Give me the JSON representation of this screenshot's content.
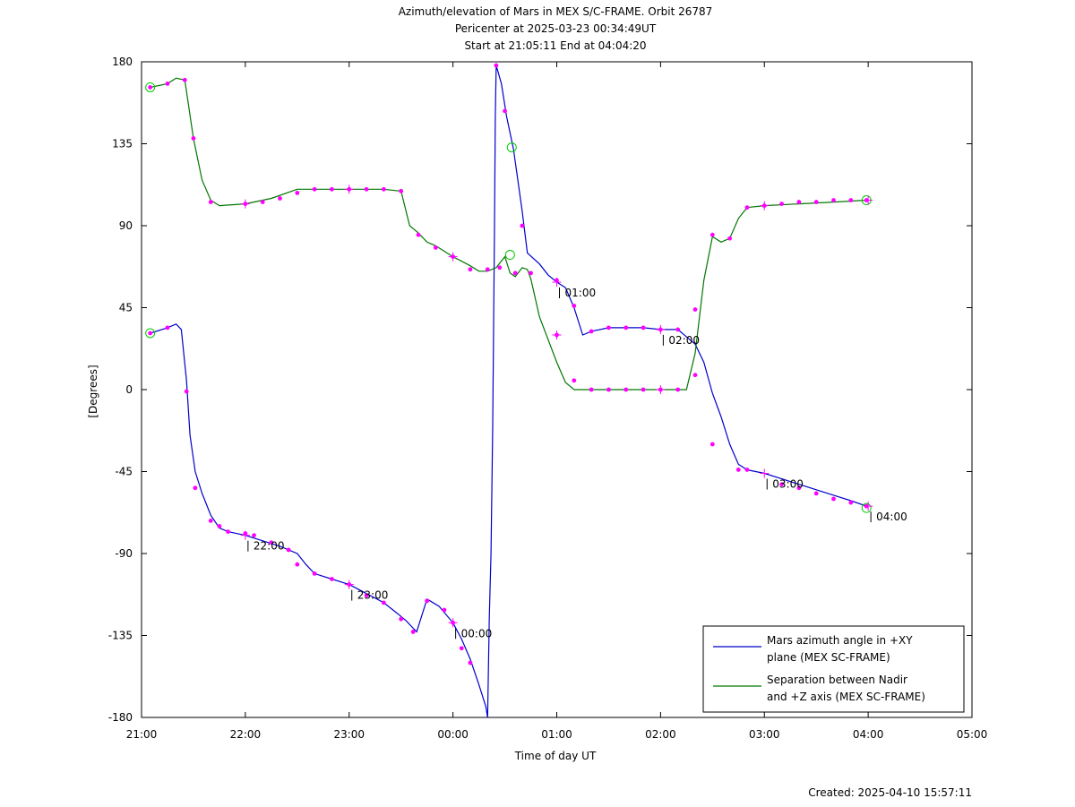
{
  "chart_data": {
    "type": "line",
    "title_lines": [
      "Azimuth/elevation of Mars in MEX S/C-FRAME.  Orbit 26787",
      "Pericenter at 2025-03-23 00:34:49UT",
      "Start at 21:05:11 End at 04:04:20"
    ],
    "xlabel": "Time of day UT",
    "ylabel": "[Degrees]",
    "xlim": [
      0,
      480
    ],
    "ylim": [
      -180,
      180
    ],
    "x_unit": "minutes after 21:00 UT",
    "x_ticks": [
      {
        "v": 0,
        "label": "21:00"
      },
      {
        "v": 60,
        "label": "22:00"
      },
      {
        "v": 120,
        "label": "23:00"
      },
      {
        "v": 180,
        "label": "00:00"
      },
      {
        "v": 240,
        "label": "01:00"
      },
      {
        "v": 300,
        "label": "02:00"
      },
      {
        "v": 360,
        "label": "03:00"
      },
      {
        "v": 420,
        "label": "04:00"
      },
      {
        "v": 480,
        "label": "05:00"
      }
    ],
    "y_ticks": [
      {
        "v": 180,
        "label": "180"
      },
      {
        "v": 135,
        "label": "135"
      },
      {
        "v": 90,
        "label": "90"
      },
      {
        "v": 45,
        "label": "45"
      },
      {
        "v": 0,
        "label": "0"
      },
      {
        "v": -45,
        "label": "-45"
      },
      {
        "v": -90,
        "label": "-90"
      },
      {
        "v": -135,
        "label": "-135"
      },
      {
        "v": -180,
        "label": "-180"
      }
    ],
    "legend": {
      "placement": "bottom-right",
      "entries": [
        {
          "lines": [
            "Mars azimuth angle in +XY",
            "plane (MEX SC-FRAME)"
          ],
          "color": "#0000cc"
        },
        {
          "lines": [
            "Separation between Nadir",
            "and +Z axis (MEX SC-FRAME)"
          ],
          "color": "#007700"
        }
      ]
    },
    "series": [
      {
        "name": "Mars azimuth angle in +XY plane (MEX SC-FRAME)",
        "color": "#0000cc",
        "points": [
          [
            5,
            31
          ],
          [
            15,
            34
          ],
          [
            20,
            36
          ],
          [
            23,
            33
          ],
          [
            26,
            5
          ],
          [
            28,
            -25
          ],
          [
            31,
            -45
          ],
          [
            35,
            -57
          ],
          [
            40,
            -69
          ],
          [
            45,
            -76
          ],
          [
            50,
            -78
          ],
          [
            60,
            -80
          ],
          [
            70,
            -83
          ],
          [
            80,
            -86
          ],
          [
            90,
            -90
          ],
          [
            95,
            -96
          ],
          [
            100,
            -101
          ],
          [
            110,
            -104
          ],
          [
            120,
            -107
          ],
          [
            130,
            -112
          ],
          [
            140,
            -117
          ],
          [
            148,
            -123
          ],
          [
            153,
            -127
          ],
          [
            157,
            -131
          ],
          [
            159,
            -133
          ],
          [
            162,
            -124
          ],
          [
            165,
            -115
          ],
          [
            172,
            -119
          ],
          [
            180,
            -128
          ],
          [
            185,
            -137
          ],
          [
            190,
            -148
          ],
          [
            195,
            -162
          ],
          [
            199,
            -174
          ],
          [
            200,
            -180
          ],
          [
            201,
            -125
          ],
          [
            202,
            -90
          ],
          [
            203,
            -20
          ],
          [
            204,
            90
          ],
          [
            204.5,
            150
          ],
          [
            205,
            178
          ],
          [
            208,
            168
          ],
          [
            211,
            150
          ],
          [
            215,
            132
          ],
          [
            220,
            98
          ],
          [
            223,
            75
          ],
          [
            230,
            69
          ],
          [
            235,
            63
          ],
          [
            240,
            59
          ],
          [
            245,
            56
          ],
          [
            250,
            45
          ],
          [
            255,
            30
          ],
          [
            260,
            32
          ],
          [
            270,
            34
          ],
          [
            280,
            34
          ],
          [
            290,
            34
          ],
          [
            300,
            33
          ],
          [
            310,
            33
          ],
          [
            320,
            25
          ],
          [
            325,
            15
          ],
          [
            330,
            -2
          ],
          [
            335,
            -15
          ],
          [
            340,
            -30
          ],
          [
            345,
            -41
          ],
          [
            350,
            -44
          ],
          [
            360,
            -46
          ],
          [
            370,
            -49
          ],
          [
            380,
            -52
          ],
          [
            390,
            -55
          ],
          [
            400,
            -58
          ],
          [
            410,
            -61
          ],
          [
            419,
            -64
          ]
        ],
        "markers": [
          [
            5,
            31
          ],
          [
            15,
            34
          ],
          [
            26,
            -1
          ],
          [
            31,
            -54
          ],
          [
            40,
            -72
          ],
          [
            45,
            -75
          ],
          [
            50,
            -78
          ],
          [
            60,
            -79
          ],
          [
            65,
            -80
          ],
          [
            75,
            -84
          ],
          [
            85,
            -88
          ],
          [
            90,
            -96
          ],
          [
            100,
            -101
          ],
          [
            110,
            -104
          ],
          [
            120,
            -107
          ],
          [
            130,
            -113
          ],
          [
            140,
            -117
          ],
          [
            150,
            -126
          ],
          [
            157,
            -133
          ],
          [
            165,
            -116
          ],
          [
            175,
            -121
          ],
          [
            180,
            -128
          ],
          [
            185,
            -142
          ],
          [
            190,
            -150
          ],
          [
            205,
            178
          ],
          [
            210,
            153
          ],
          [
            220,
            90
          ],
          [
            240,
            60
          ],
          [
            250,
            46
          ],
          [
            260,
            32
          ],
          [
            270,
            34
          ],
          [
            280,
            34
          ],
          [
            290,
            34
          ],
          [
            300,
            33
          ],
          [
            310,
            33
          ],
          [
            320,
            8
          ],
          [
            330,
            -30
          ],
          [
            345,
            -44
          ],
          [
            350,
            -44
          ],
          [
            370,
            -52
          ],
          [
            380,
            -54
          ],
          [
            390,
            -57
          ],
          [
            400,
            -60
          ],
          [
            410,
            -62
          ],
          [
            419,
            -64
          ]
        ],
        "start_marker": [
          5,
          31
        ],
        "time_labels": [
          {
            "x": 60,
            "y": -80,
            "label": "22:00"
          },
          {
            "x": 120,
            "y": -107,
            "label": "23:00"
          },
          {
            "x": 180,
            "y": -128,
            "label": "00:00"
          },
          {
            "x": 240,
            "y": 59,
            "label": "01:00"
          },
          {
            "x": 300,
            "y": 33,
            "label": "02:00"
          },
          {
            "x": 360,
            "y": -46,
            "label": "03:00"
          },
          {
            "x": 420,
            "y": -64,
            "label": "04:00"
          }
        ]
      },
      {
        "name": "Separation between Nadir and +Z axis (MEX SC-FRAME)",
        "color": "#007700",
        "points": [
          [
            5,
            166
          ],
          [
            15,
            168
          ],
          [
            20,
            171
          ],
          [
            25,
            170
          ],
          [
            30,
            138
          ],
          [
            35,
            115
          ],
          [
            40,
            104
          ],
          [
            45,
            101
          ],
          [
            60,
            102
          ],
          [
            75,
            105
          ],
          [
            90,
            110
          ],
          [
            100,
            110
          ],
          [
            120,
            110
          ],
          [
            140,
            110
          ],
          [
            150,
            109
          ],
          [
            155,
            90
          ],
          [
            160,
            86
          ],
          [
            165,
            81
          ],
          [
            170,
            79
          ],
          [
            180,
            73
          ],
          [
            190,
            68
          ],
          [
            195,
            65
          ],
          [
            200,
            65
          ],
          [
            205,
            67
          ],
          [
            210,
            73
          ],
          [
            213,
            64
          ],
          [
            216,
            62
          ],
          [
            220,
            67
          ],
          [
            223,
            66
          ],
          [
            225,
            61
          ],
          [
            230,
            40
          ],
          [
            240,
            15
          ],
          [
            245,
            4
          ],
          [
            250,
            0
          ],
          [
            300,
            0
          ],
          [
            315,
            0
          ],
          [
            320,
            20
          ],
          [
            325,
            60
          ],
          [
            330,
            84
          ],
          [
            335,
            81
          ],
          [
            340,
            83
          ],
          [
            345,
            94
          ],
          [
            350,
            100
          ],
          [
            360,
            101
          ],
          [
            380,
            102
          ],
          [
            400,
            103
          ],
          [
            419,
            104
          ]
        ],
        "markers": [
          [
            5,
            166
          ],
          [
            15,
            168
          ],
          [
            25,
            170
          ],
          [
            30,
            138
          ],
          [
            40,
            103
          ],
          [
            60,
            102
          ],
          [
            70,
            103
          ],
          [
            80,
            105
          ],
          [
            90,
            108
          ],
          [
            100,
            110
          ],
          [
            110,
            110
          ],
          [
            120,
            110
          ],
          [
            130,
            110
          ],
          [
            140,
            110
          ],
          [
            150,
            109
          ],
          [
            160,
            85
          ],
          [
            170,
            78
          ],
          [
            180,
            73
          ],
          [
            190,
            66
          ],
          [
            200,
            66
          ],
          [
            207,
            67
          ],
          [
            216,
            64
          ],
          [
            225,
            64
          ],
          [
            240,
            30
          ],
          [
            250,
            5
          ],
          [
            260,
            0
          ],
          [
            270,
            0
          ],
          [
            280,
            0
          ],
          [
            290,
            0
          ],
          [
            300,
            0
          ],
          [
            310,
            0
          ],
          [
            320,
            44
          ],
          [
            330,
            85
          ],
          [
            340,
            83
          ],
          [
            350,
            100
          ],
          [
            360,
            101
          ],
          [
            370,
            102
          ],
          [
            380,
            103
          ],
          [
            390,
            103
          ],
          [
            400,
            104
          ],
          [
            410,
            104
          ],
          [
            419,
            104
          ]
        ],
        "start_marker": [
          5,
          166
        ]
      }
    ],
    "extra_circles": [
      [
        214,
        133
      ],
      [
        213,
        74
      ],
      [
        419,
        104
      ],
      [
        419,
        -65
      ]
    ],
    "footer": "Created: 2025-04-10 15:57:11"
  }
}
